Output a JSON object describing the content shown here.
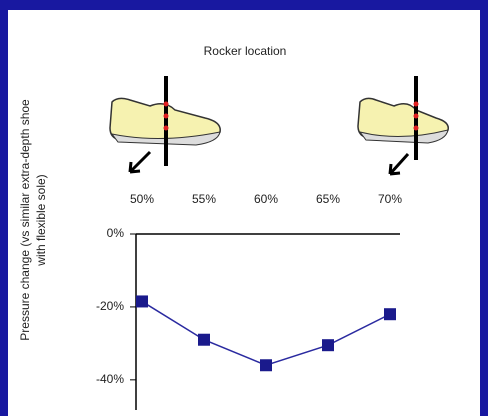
{
  "chart_data": {
    "type": "line",
    "title": "Rocker location",
    "ylabel": [
      "Pressure change (vs similar extra-depth shoe",
      "with flexible sole)"
    ],
    "categories": [
      "50%",
      "55%",
      "60%",
      "65%",
      "70%"
    ],
    "values": [
      -18.5,
      -29,
      -36,
      -30.5,
      -22
    ],
    "color": "#2a2aa0",
    "ylim": [
      -48,
      0
    ],
    "yticks": [
      {
        "value": 0,
        "label": "0%"
      },
      {
        "value": -20,
        "label": "-20%"
      },
      {
        "value": -40,
        "label": "-40%"
      }
    ]
  }
}
